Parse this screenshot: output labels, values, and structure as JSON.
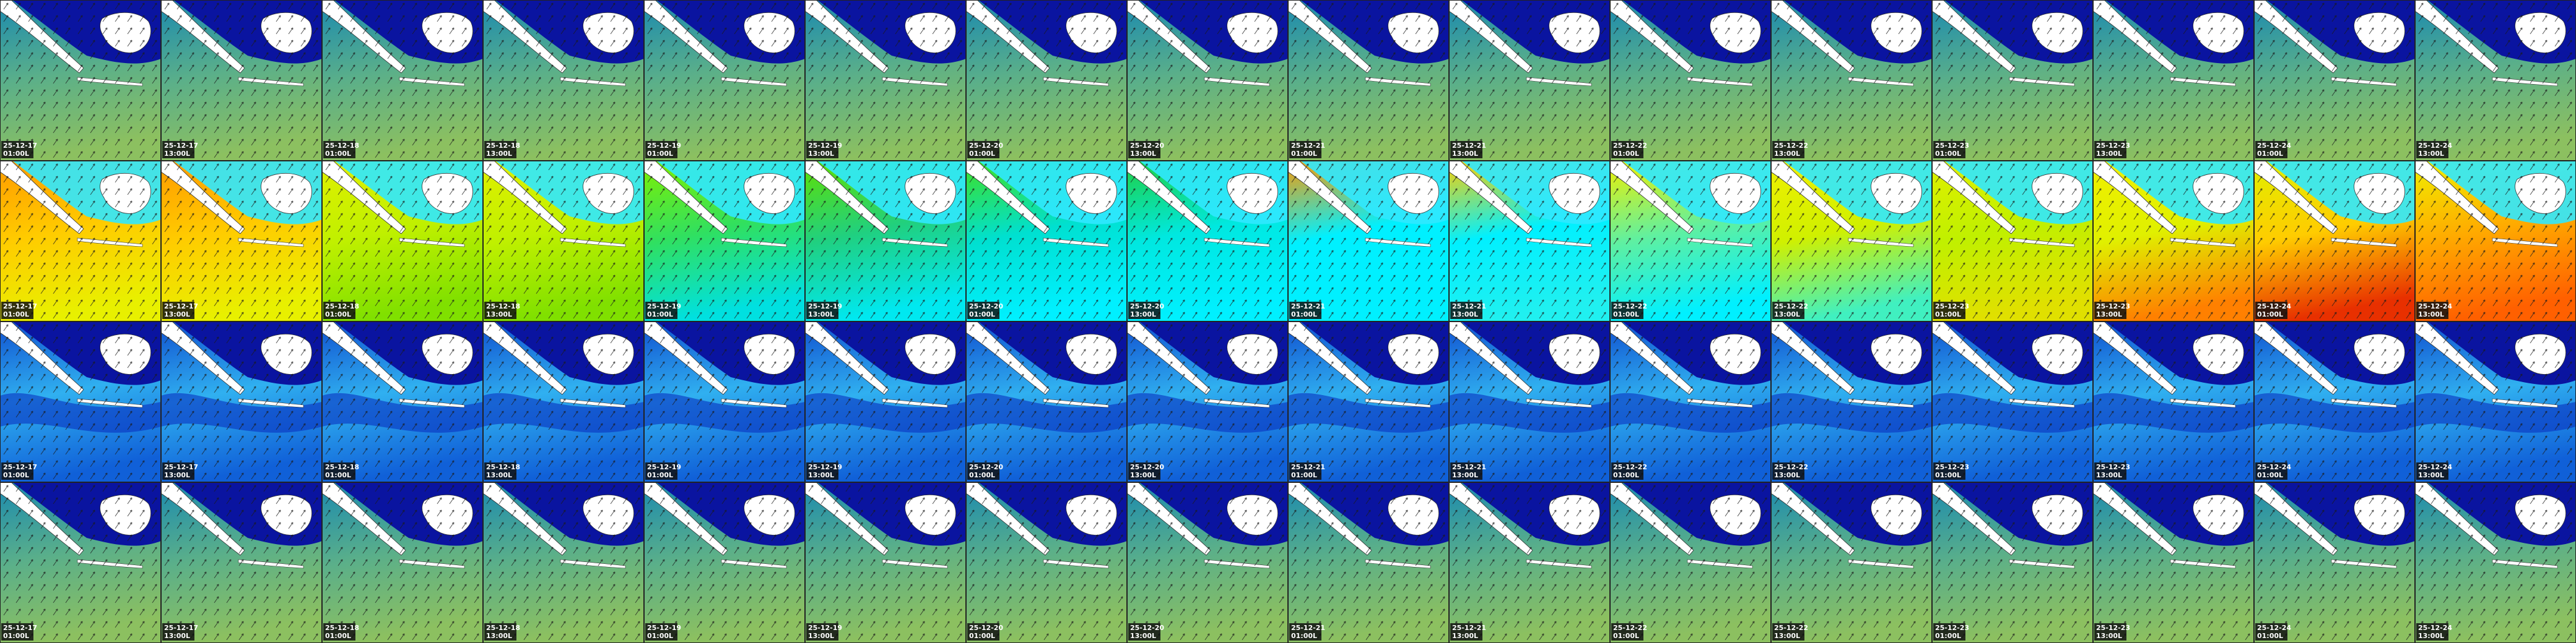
{
  "frames": [
    {
      "date": "25-12-17",
      "time": "01:00L"
    },
    {
      "date": "25-12-17",
      "time": "13:00L"
    },
    {
      "date": "25-12-18",
      "time": "01:00L"
    },
    {
      "date": "25-12-18",
      "time": "13:00L"
    },
    {
      "date": "25-12-19",
      "time": "01:00L"
    },
    {
      "date": "25-12-19",
      "time": "13:00L"
    },
    {
      "date": "25-12-20",
      "time": "01:00L"
    },
    {
      "date": "25-12-20",
      "time": "13:00L"
    },
    {
      "date": "25-12-21",
      "time": "01:00L"
    },
    {
      "date": "25-12-21",
      "time": "13:00L"
    },
    {
      "date": "25-12-22",
      "time": "01:00L"
    },
    {
      "date": "25-12-22",
      "time": "13:00L"
    },
    {
      "date": "25-12-23",
      "time": "01:00L"
    },
    {
      "date": "25-12-23",
      "time": "13:00L"
    },
    {
      "date": "25-12-24",
      "time": "01:00L"
    },
    {
      "date": "25-12-24",
      "time": "13:00L"
    }
  ]
}
